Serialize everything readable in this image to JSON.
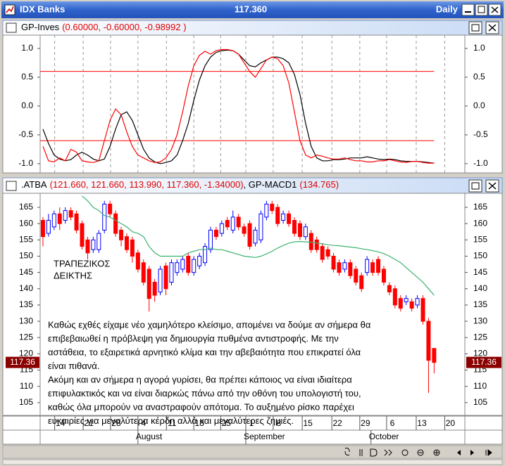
{
  "window": {
    "title": "IDX Banks",
    "price": "117.360",
    "period": "Daily"
  },
  "panes": [
    {
      "name": "GP-Inves",
      "params": "(0.60000, -0.60000, -0.98992 )"
    },
    {
      "symbol": ".ATBA",
      "quote": "(121.660, 121.660, 113.990, 117.360, -1.34000)",
      "indicator": ", GP-MACD1",
      "indicator_value": "(134.765)"
    }
  ],
  "chart_data": [
    {
      "type": "line",
      "xlim": [
        -0.5,
        75.5
      ],
      "ylim": [
        -1.16,
        1.23
      ],
      "yticks": [
        {
          "value": 1,
          "label": "1.0"
        },
        0.5,
        {
          "value": 0,
          "label": "0.0"
        },
        -0.5,
        {
          "value": -1,
          "label": "-1.0"
        }
      ],
      "xticks": [
        2.1,
        7.2,
        12.1,
        17,
        22.1,
        27,
        31.8,
        36.3,
        41.2,
        46.4,
        51.7,
        56.7,
        61.5,
        66.8,
        71.9
      ],
      "grid": true,
      "levels": [
        0.6,
        -0.6
      ],
      "level_color": "#ff0000",
      "series": [
        {
          "color": "#000000",
          "values": [
            -0.4,
            -0.65,
            -0.85,
            -0.92,
            -0.95,
            -0.93,
            -0.85,
            -0.8,
            -0.85,
            -0.92,
            -0.95,
            -0.92,
            -0.7,
            -0.4,
            -0.15,
            -0.1,
            -0.25,
            -0.5,
            -0.75,
            -0.9,
            -0.97,
            -1.0,
            -0.98,
            -0.95,
            -0.85,
            -0.6,
            -0.3,
            0.1,
            0.45,
            0.7,
            0.85,
            0.93,
            0.96,
            0.97,
            0.96,
            0.9,
            0.8,
            0.7,
            0.68,
            0.75,
            0.8,
            0.85,
            0.85,
            0.82,
            0.75,
            0.55,
            0.2,
            -0.3,
            -0.7,
            -0.9,
            -0.95,
            -0.95,
            -0.93,
            -0.93,
            -0.92,
            -0.9,
            -0.9,
            -0.9,
            -0.88,
            -0.9,
            -0.92,
            -0.93,
            -0.92,
            -0.93,
            -0.95,
            -0.96,
            -0.96,
            -0.96,
            -0.97,
            -0.98,
            -0.99
          ]
        },
        {
          "color": "#ff0000",
          "values": [
            -0.7,
            -0.95,
            -0.97,
            -0.9,
            -0.95,
            -0.75,
            -0.8,
            -0.95,
            -0.97,
            -0.98,
            -0.95,
            -0.6,
            -0.25,
            -0.05,
            -0.15,
            -0.45,
            -0.7,
            -0.85,
            -0.9,
            -0.95,
            -0.98,
            -0.97,
            -0.9,
            -0.75,
            -0.5,
            -0.1,
            0.35,
            0.7,
            0.88,
            0.95,
            0.9,
            0.96,
            0.98,
            0.98,
            0.96,
            0.9,
            0.75,
            0.6,
            0.5,
            0.65,
            0.8,
            0.85,
            0.82,
            0.7,
            0.4,
            -0.1,
            -0.6,
            -0.85,
            -0.9,
            -0.85,
            -0.87,
            -0.9,
            -0.92,
            -0.92,
            -0.9,
            -0.93,
            -0.95,
            -0.95,
            -0.97,
            -0.97,
            -0.95,
            -0.95,
            -0.93,
            -0.95,
            -0.97,
            -0.98,
            -0.96,
            -0.96,
            -0.98,
            -0.99,
            -0.99
          ]
        }
      ]
    },
    {
      "type": "candlestick",
      "xlim": [
        -0.5,
        75.5
      ],
      "ylim": [
        101.3,
        169.1
      ],
      "yticks": [
        105,
        110,
        115,
        120,
        125,
        130,
        135,
        140,
        145,
        150,
        155,
        160,
        165
      ],
      "up_color": "#0000ff",
      "down_color": "#ff0000",
      "open": [
        161,
        157,
        159,
        163,
        161,
        164,
        163,
        160,
        155,
        152,
        152,
        158,
        166,
        163,
        158,
        156,
        155,
        151,
        148,
        146,
        142,
        139,
        147,
        142,
        145,
        146,
        150,
        145,
        147,
        148,
        152,
        158,
        157,
        161,
        158,
        162,
        159,
        160,
        154,
        155,
        162,
        166,
        165,
        161,
        163,
        161,
        160,
        156,
        157,
        155,
        153,
        152,
        150,
        148,
        146,
        148,
        146,
        144,
        145,
        148,
        149,
        146,
        141,
        140,
        137,
        136,
        136,
        135,
        137,
        130,
        121.66
      ],
      "close": [
        156,
        161,
        163,
        160,
        164,
        162,
        158,
        153,
        151,
        155,
        157,
        166,
        163,
        157,
        155,
        152,
        150,
        146,
        142,
        137,
        138,
        146,
        140,
        148,
        148,
        149,
        145,
        149,
        150,
        153,
        158,
        156,
        160,
        159,
        162,
        159,
        157,
        153,
        158,
        163,
        166,
        164,
        160,
        163,
        160,
        157,
        156,
        159,
        152,
        152,
        149,
        150,
        146,
        145,
        148,
        144,
        142,
        140,
        149,
        145,
        145,
        142,
        139,
        135,
        134,
        137,
        134,
        137,
        130,
        118,
        117.36
      ],
      "high": [
        162,
        163,
        164,
        165,
        165,
        165,
        164,
        161,
        156,
        156,
        158,
        167,
        167,
        164,
        159,
        157,
        156,
        152,
        149,
        147,
        143,
        147,
        148,
        149,
        149,
        150,
        151,
        150,
        151,
        154,
        159,
        159,
        161,
        162,
        164,
        163,
        160,
        161,
        159,
        164,
        167,
        167,
        166,
        164,
        164,
        162,
        161,
        160,
        158,
        156,
        154,
        153,
        151,
        149,
        149,
        149,
        147,
        145,
        150,
        149,
        150,
        147,
        142,
        141,
        138,
        138,
        137,
        138,
        138,
        131,
        121.66
      ],
      "low": [
        153,
        156,
        158,
        158,
        160,
        161,
        157,
        152,
        149,
        151,
        151,
        157,
        162,
        156,
        153,
        151,
        148,
        145,
        141,
        133,
        136,
        138,
        138,
        141,
        144,
        145,
        144,
        144,
        146,
        147,
        151,
        155,
        156,
        158,
        157,
        158,
        156,
        152,
        153,
        154,
        161,
        163,
        159,
        160,
        159,
        156,
        155,
        155,
        151,
        151,
        148,
        149,
        145,
        144,
        145,
        143,
        141,
        139,
        144,
        144,
        144,
        141,
        138,
        134,
        133,
        135,
        133,
        134,
        129,
        108,
        113.99
      ],
      "series": [
        {
          "color": "#3cb371",
          "values": [
            null,
            null,
            null,
            null,
            null,
            null,
            null,
            168.5,
            167,
            165,
            164,
            162.5,
            162,
            161,
            160,
            159,
            157.5,
            157,
            156,
            153,
            151,
            150,
            150,
            150,
            150,
            150,
            151,
            151.5,
            152,
            152,
            152.5,
            152,
            152,
            151.5,
            151,
            150.5,
            150,
            149.8,
            149.6,
            150,
            150.7,
            151.5,
            152.5,
            153.3,
            154,
            154.4,
            154.5,
            154.4,
            154.3,
            154,
            153.8,
            153.5,
            153.3,
            153.2,
            153,
            152.8,
            152.6,
            152.3,
            152,
            151.7,
            151.3,
            150.8,
            150,
            149,
            148,
            146.5,
            145,
            143.5,
            142,
            140,
            138
          ]
        }
      ],
      "last": 117.36,
      "xticks": [
        {
          "value": 2.1,
          "label": "14"
        },
        {
          "value": 7.2,
          "label": "21"
        },
        {
          "value": 12.1,
          "label": "28"
        },
        {
          "value": 17,
          "label": "4"
        },
        {
          "value": 22.1,
          "label": "11"
        },
        {
          "value": 27,
          "label": "18"
        },
        {
          "value": 31.8,
          "label": "25"
        },
        {
          "value": 36.3,
          "label": "1"
        },
        {
          "value": 41.2,
          "label": "8"
        },
        {
          "value": 46.4,
          "label": "15"
        },
        {
          "value": 51.7,
          "label": "22"
        },
        {
          "value": 56.7,
          "label": "29"
        },
        {
          "value": 61.5,
          "label": "6"
        },
        {
          "value": 66.8,
          "label": "13"
        },
        {
          "value": 71.9,
          "label": "20"
        }
      ],
      "months": [
        {
          "value": 17,
          "label": "August"
        },
        {
          "value": 36.3,
          "label": "September"
        },
        {
          "value": 58.7,
          "label": "October"
        }
      ],
      "annotations": {
        "label": [
          "ΤΡΑΠΕΖΙΚΟΣ",
          "ΔΕΙΚΤΗΣ"
        ],
        "note": [
          "Καθώς εχθές είχαμε νέο χαμηλότερο κλείσιμο, απομένει να δούμε αν σήμερα θα",
          "επιβεβαιωθεί η πρόβλεψη για δημιουργία πυθμένα αντιστροφής.   Με την",
          "αστάθεια, το εξαιρετικά αρνητικό κλίμα και την αβεβαιότητα που επικρατεί όλα",
          "είναι πιθανά.",
          "Ακόμη και αν σήμερα η αγορά γυρίσει, θα πρέπει κάποιος να είναι  ιδιαίτερα",
          "επιφυλακτικός και να είναι διαρκώς πάνω από την οθόνη του υπολογιστή του,",
          "καθώς όλα μπορούν να αναστραφούν απότομα. Το αυξημένο ρίσκο παρέχει",
          "ευκαιρίες για μεγαλύτερα κέρδη αλλά και μεγαλύτερες ζημιές."
        ]
      }
    }
  ]
}
